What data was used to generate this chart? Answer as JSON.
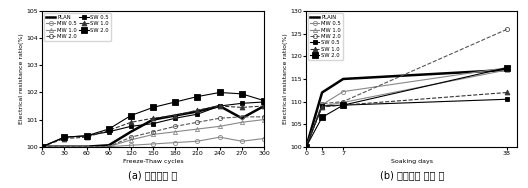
{
  "left": {
    "caption": "(a) 동결융해 후",
    "xlabel": "Freeze-Thaw cycles",
    "ylabel": "Electrical resistance ratio(%)",
    "xlim": [
      0,
      300
    ],
    "ylim": [
      100.0,
      105.0
    ],
    "xticks": [
      0,
      30,
      60,
      90,
      120,
      150,
      180,
      210,
      240,
      270,
      300
    ],
    "yticks": [
      100.0,
      101.0,
      102.0,
      103.0,
      104.0,
      105.0
    ],
    "series": [
      {
        "label": "PLAN",
        "x": [
          0,
          30,
          60,
          90,
          120,
          150,
          180,
          210,
          240,
          270,
          300
        ],
        "y": [
          100.0,
          100.0,
          100.0,
          100.05,
          100.55,
          101.0,
          101.15,
          101.3,
          101.5,
          101.05,
          101.5
        ],
        "color": "#000000",
        "linewidth": 1.8,
        "linestyle": "-",
        "marker": null,
        "markersize": 0
      },
      {
        "label": "MW 0.5",
        "x": [
          0,
          30,
          60,
          90,
          120,
          150,
          180,
          210,
          240,
          270,
          300
        ],
        "y": [
          100.0,
          100.0,
          100.0,
          100.0,
          100.05,
          100.1,
          100.15,
          100.2,
          100.35,
          100.2,
          100.3
        ],
        "color": "#888888",
        "linewidth": 0.8,
        "linestyle": "-",
        "marker": "o",
        "markersize": 3,
        "markerfacecolor": "none",
        "markeredgecolor": "#888888"
      },
      {
        "label": "MW 1.0",
        "x": [
          0,
          30,
          60,
          90,
          120,
          150,
          180,
          210,
          240,
          270,
          300
        ],
        "y": [
          100.0,
          100.0,
          100.0,
          100.0,
          100.25,
          100.45,
          100.55,
          100.65,
          100.75,
          100.9,
          101.0
        ],
        "color": "#888888",
        "linewidth": 0.8,
        "linestyle": "-",
        "marker": "^",
        "markersize": 3,
        "markerfacecolor": "none",
        "markeredgecolor": "#888888"
      },
      {
        "label": "MW 2.0",
        "x": [
          0,
          30,
          60,
          90,
          120,
          150,
          180,
          210,
          240,
          270,
          300
        ],
        "y": [
          100.0,
          100.0,
          100.0,
          100.0,
          100.35,
          100.55,
          100.75,
          100.9,
          101.05,
          101.1,
          101.1
        ],
        "color": "#555555",
        "linewidth": 0.8,
        "linestyle": "--",
        "marker": "o",
        "markersize": 3,
        "markerfacecolor": "none",
        "markeredgecolor": "#555555"
      },
      {
        "label": "SW 0.5",
        "x": [
          0,
          30,
          60,
          90,
          120,
          150,
          180,
          210,
          240,
          270,
          300
        ],
        "y": [
          100.0,
          100.35,
          100.4,
          100.55,
          100.75,
          100.85,
          101.05,
          101.2,
          101.5,
          101.6,
          101.65
        ],
        "color": "#000000",
        "linewidth": 0.8,
        "linestyle": "-",
        "marker": "s",
        "markersize": 3.5,
        "markerfacecolor": "#000000",
        "markeredgecolor": "#000000"
      },
      {
        "label": "SW 1.0",
        "x": [
          0,
          30,
          60,
          90,
          120,
          150,
          180,
          210,
          240,
          270,
          300
        ],
        "y": [
          100.0,
          100.3,
          100.35,
          100.6,
          100.9,
          101.05,
          101.15,
          101.35,
          101.5,
          101.45,
          101.5
        ],
        "color": "#333333",
        "linewidth": 0.8,
        "linestyle": "--",
        "marker": "^",
        "markersize": 3.5,
        "markerfacecolor": "#333333",
        "markeredgecolor": "#333333"
      },
      {
        "label": "SW 2.0",
        "x": [
          0,
          30,
          60,
          90,
          120,
          150,
          180,
          210,
          240,
          270,
          300
        ],
        "y": [
          100.0,
          100.35,
          100.4,
          100.65,
          101.15,
          101.45,
          101.65,
          101.85,
          102.0,
          101.95,
          101.7
        ],
        "color": "#000000",
        "linewidth": 0.8,
        "linestyle": "-",
        "marker": "s",
        "markersize": 4.5,
        "markerfacecolor": "#000000",
        "markeredgecolor": "#000000"
      }
    ]
  },
  "right": {
    "caption": "(b) 황산용액 침지 후",
    "xlabel": "Soaking days",
    "ylabel": "Electrical resistance ratio(%)",
    "xlim": [
      0,
      40
    ],
    "ylim": [
      100,
      130
    ],
    "xticks": [
      0,
      3,
      7,
      38
    ],
    "yticks": [
      100,
      105,
      110,
      115,
      120,
      125,
      130
    ],
    "series": [
      {
        "label": "PLAIN",
        "x": [
          0,
          3,
          7,
          38
        ],
        "y": [
          100.0,
          112.0,
          115.0,
          117.0
        ],
        "color": "#000000",
        "linewidth": 1.8,
        "linestyle": "-",
        "marker": null,
        "markersize": 0
      },
      {
        "label": "MW 0.5",
        "x": [
          0,
          3,
          7,
          38
        ],
        "y": [
          100.0,
          109.3,
          112.2,
          117.5
        ],
        "color": "#888888",
        "linewidth": 0.8,
        "linestyle": "-",
        "marker": "o",
        "markersize": 3,
        "markerfacecolor": "none",
        "markeredgecolor": "#888888"
      },
      {
        "label": "MW 1.0",
        "x": [
          0,
          3,
          7,
          38
        ],
        "y": [
          100.0,
          109.0,
          109.8,
          117.0
        ],
        "color": "#888888",
        "linewidth": 0.8,
        "linestyle": "-",
        "marker": "^",
        "markersize": 3,
        "markerfacecolor": "none",
        "markeredgecolor": "#888888"
      },
      {
        "label": "MW 2.0",
        "x": [
          0,
          3,
          7,
          38
        ],
        "y": [
          100.0,
          109.5,
          110.0,
          126.0
        ],
        "color": "#555555",
        "linewidth": 0.8,
        "linestyle": "--",
        "marker": "o",
        "markersize": 3,
        "markerfacecolor": "none",
        "markeredgecolor": "#555555"
      },
      {
        "label": "SW 0.5",
        "x": [
          0,
          3,
          7,
          38
        ],
        "y": [
          100.0,
          109.0,
          109.2,
          110.5
        ],
        "color": "#000000",
        "linewidth": 0.8,
        "linestyle": "-",
        "marker": "s",
        "markersize": 3.5,
        "markerfacecolor": "#000000",
        "markeredgecolor": "#000000"
      },
      {
        "label": "SW 1.0",
        "x": [
          0,
          3,
          7,
          38
        ],
        "y": [
          100.0,
          108.8,
          109.2,
          112.0
        ],
        "color": "#333333",
        "linewidth": 0.8,
        "linestyle": "--",
        "marker": "^",
        "markersize": 3.5,
        "markerfacecolor": "#333333",
        "markeredgecolor": "#333333"
      },
      {
        "label": "SW 2.0",
        "x": [
          0,
          3,
          7,
          38
        ],
        "y": [
          100.0,
          106.5,
          109.2,
          117.5
        ],
        "color": "#000000",
        "linewidth": 0.8,
        "linestyle": "-",
        "marker": "s",
        "markersize": 4.5,
        "markerfacecolor": "#000000",
        "markeredgecolor": "#000000"
      }
    ]
  },
  "background_color": "#ffffff",
  "caption_fontsize": 7.0,
  "tick_fontsize": 4.5,
  "label_fontsize": 4.5,
  "legend_fontsize": 3.8
}
